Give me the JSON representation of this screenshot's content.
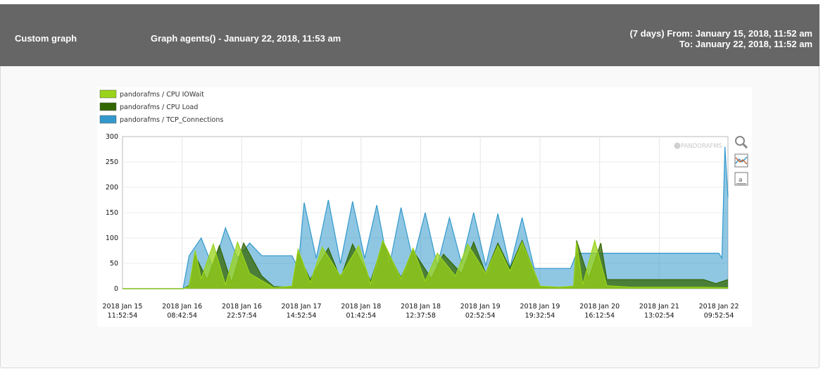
{
  "header": {
    "title": "Custom graph",
    "graph_title": "Graph agents() - January 22, 2018, 11:53 am",
    "range_from": "(7 days) From: January 15, 2018, 11:52 am",
    "range_to": "To: January 22, 2018, 11:52 am"
  },
  "watermark": "PANDORAFMS",
  "icons": [
    "zoom-icon",
    "chart-lines-icon",
    "chart-axis-icon"
  ],
  "chart_data": {
    "type": "area",
    "title": "",
    "ylim": [
      0,
      300
    ],
    "yticks": [
      0,
      50,
      100,
      150,
      200,
      250,
      300
    ],
    "x_ticks": [
      {
        "date": "2018 Jan 15",
        "time": "11:52:54"
      },
      {
        "date": "2018 Jan 16",
        "time": "08:42:54"
      },
      {
        "date": "2018 Jan 16",
        "time": "22:57:54"
      },
      {
        "date": "2018 Jan 17",
        "time": "14:52:54"
      },
      {
        "date": "2018 Jan 18",
        "time": "01:42:54"
      },
      {
        "date": "2018 Jan 18",
        "time": "12:37:58"
      },
      {
        "date": "2018 Jan 19",
        "time": "02:52:54"
      },
      {
        "date": "2018 Jan 19",
        "time": "19:32:54"
      },
      {
        "date": "2018 Jan 20",
        "time": "16:12:54"
      },
      {
        "date": "2018 Jan 21",
        "time": "13:02:54"
      },
      {
        "date": "2018 Jan 22",
        "time": "09:52:54"
      }
    ],
    "series": [
      {
        "name": "pandorafms / CPU IOWait",
        "color": "#99d31a",
        "points": [
          [
            0,
            0
          ],
          [
            0.1,
            0
          ],
          [
            0.11,
            4
          ],
          [
            0.12,
            75
          ],
          [
            0.13,
            20
          ],
          [
            0.15,
            88
          ],
          [
            0.17,
            8
          ],
          [
            0.19,
            92
          ],
          [
            0.21,
            30
          ],
          [
            0.25,
            2
          ],
          [
            0.28,
            5
          ],
          [
            0.29,
            78
          ],
          [
            0.31,
            12
          ],
          [
            0.33,
            82
          ],
          [
            0.36,
            25
          ],
          [
            0.39,
            85
          ],
          [
            0.41,
            10
          ],
          [
            0.43,
            95
          ],
          [
            0.46,
            20
          ],
          [
            0.48,
            80
          ],
          [
            0.5,
            15
          ],
          [
            0.52,
            70
          ],
          [
            0.55,
            25
          ],
          [
            0.57,
            88
          ],
          [
            0.6,
            30
          ],
          [
            0.62,
            85
          ],
          [
            0.64,
            35
          ],
          [
            0.66,
            92
          ],
          [
            0.69,
            5
          ],
          [
            0.72,
            3
          ],
          [
            0.745,
            5
          ],
          [
            0.75,
            92
          ],
          [
            0.76,
            8
          ],
          [
            0.78,
            95
          ],
          [
            0.8,
            6
          ],
          [
            0.84,
            3
          ],
          [
            0.9,
            3
          ],
          [
            0.96,
            3
          ],
          [
            1.0,
            2
          ]
        ]
      },
      {
        "name": "pandorafms / CPU Load",
        "color": "#336600",
        "points": [
          [
            0,
            0
          ],
          [
            0.1,
            0
          ],
          [
            0.11,
            6
          ],
          [
            0.12,
            65
          ],
          [
            0.14,
            18
          ],
          [
            0.16,
            85
          ],
          [
            0.18,
            12
          ],
          [
            0.2,
            90
          ],
          [
            0.23,
            25
          ],
          [
            0.25,
            4
          ],
          [
            0.28,
            3
          ],
          [
            0.29,
            70
          ],
          [
            0.31,
            18
          ],
          [
            0.34,
            80
          ],
          [
            0.36,
            20
          ],
          [
            0.38,
            88
          ],
          [
            0.41,
            15
          ],
          [
            0.43,
            90
          ],
          [
            0.46,
            22
          ],
          [
            0.48,
            75
          ],
          [
            0.51,
            20
          ],
          [
            0.53,
            68
          ],
          [
            0.56,
            30
          ],
          [
            0.58,
            92
          ],
          [
            0.6,
            30
          ],
          [
            0.62,
            90
          ],
          [
            0.64,
            40
          ],
          [
            0.66,
            95
          ],
          [
            0.69,
            3
          ],
          [
            0.72,
            2
          ],
          [
            0.745,
            4
          ],
          [
            0.75,
            95
          ],
          [
            0.77,
            20
          ],
          [
            0.79,
            90
          ],
          [
            0.8,
            18
          ],
          [
            0.85,
            18
          ],
          [
            0.9,
            18
          ],
          [
            0.96,
            18
          ],
          [
            0.98,
            10
          ],
          [
            1.0,
            18
          ]
        ]
      },
      {
        "name": "pandorafms / TCP_Connections",
        "color": "#3399cc",
        "points": [
          [
            0,
            0
          ],
          [
            0.1,
            0
          ],
          [
            0.11,
            65
          ],
          [
            0.13,
            100
          ],
          [
            0.15,
            40
          ],
          [
            0.17,
            120
          ],
          [
            0.19,
            60
          ],
          [
            0.21,
            90
          ],
          [
            0.23,
            65
          ],
          [
            0.25,
            65
          ],
          [
            0.27,
            65
          ],
          [
            0.28,
            65
          ],
          [
            0.29,
            40
          ],
          [
            0.3,
            170
          ],
          [
            0.32,
            60
          ],
          [
            0.34,
            175
          ],
          [
            0.36,
            50
          ],
          [
            0.38,
            172
          ],
          [
            0.4,
            60
          ],
          [
            0.42,
            165
          ],
          [
            0.44,
            40
          ],
          [
            0.46,
            160
          ],
          [
            0.48,
            55
          ],
          [
            0.5,
            150
          ],
          [
            0.52,
            45
          ],
          [
            0.54,
            140
          ],
          [
            0.56,
            50
          ],
          [
            0.58,
            150
          ],
          [
            0.6,
            45
          ],
          [
            0.62,
            148
          ],
          [
            0.64,
            42
          ],
          [
            0.66,
            140
          ],
          [
            0.68,
            40
          ],
          [
            0.7,
            40
          ],
          [
            0.72,
            40
          ],
          [
            0.74,
            40
          ],
          [
            0.75,
            70
          ],
          [
            0.77,
            70
          ],
          [
            0.8,
            70
          ],
          [
            0.85,
            70
          ],
          [
            0.9,
            70
          ],
          [
            0.95,
            70
          ],
          [
            0.985,
            70
          ],
          [
            0.99,
            60
          ],
          [
            0.995,
            280
          ],
          [
            1.0,
            180
          ]
        ]
      }
    ]
  }
}
